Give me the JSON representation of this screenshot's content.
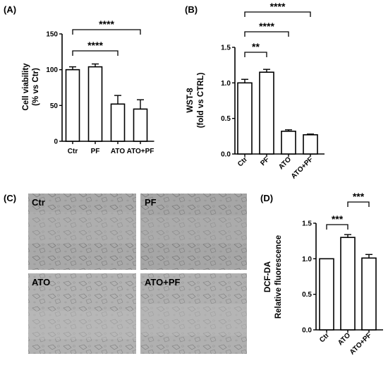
{
  "figure": {
    "panel_letters": [
      "(A)",
      "(B)",
      "(C)",
      "(D)"
    ],
    "micrograph_labels": [
      "Ctr",
      "PF",
      "ATO",
      "ATO+PF"
    ]
  },
  "chart_data": [
    {
      "panel": "(A)",
      "type": "bar",
      "categories": [
        "Ctr",
        "PF",
        "ATO",
        "ATO+PF"
      ],
      "values": [
        100,
        104,
        52,
        45
      ],
      "errors": [
        4,
        4,
        12,
        13
      ],
      "ylabel_lines": [
        "Cell viability",
        "(% vs Ctr)"
      ],
      "ylim": [
        0,
        150
      ],
      "yticks": [
        0,
        50,
        100,
        150
      ],
      "ytick_labels": [
        "0",
        "50",
        "100",
        "150"
      ],
      "significance": [
        {
          "from": "Ctr",
          "to": "ATO",
          "label": "****"
        },
        {
          "from": "Ctr",
          "to": "ATO+PF",
          "label": "****"
        }
      ]
    },
    {
      "panel": "(B)",
      "type": "bar",
      "categories": [
        "Ctr",
        "PF",
        "ATO",
        "ATO+PF"
      ],
      "values": [
        1.0,
        1.15,
        0.32,
        0.27
      ],
      "errors": [
        0.05,
        0.04,
        0.02,
        0.01
      ],
      "ylabel_lines": [
        "WST-8",
        "(fold vs CTRL)"
      ],
      "ylim": [
        0,
        1.5
      ],
      "yticks": [
        0,
        0.5,
        1.0,
        1.5
      ],
      "ytick_labels": [
        "0.0",
        "0.5",
        "1.0",
        "1.5"
      ],
      "significance": [
        {
          "from": "Ctr",
          "to": "PF",
          "label": "**"
        },
        {
          "from": "Ctr",
          "to": "ATO",
          "label": "****"
        },
        {
          "from": "Ctr",
          "to": "ATO+PF",
          "label": "****"
        }
      ]
    },
    {
      "panel": "(D)",
      "type": "bar",
      "categories": [
        "Ctr",
        "ATO",
        "ATO+PF"
      ],
      "values": [
        1.0,
        1.3,
        1.01
      ],
      "errors": [
        0.0,
        0.04,
        0.05
      ],
      "ylabel_lines": [
        "DCF-DA",
        "Relative fluorescence"
      ],
      "ylim": [
        0,
        1.5
      ],
      "yticks": [
        0,
        0.5,
        1.0,
        1.5
      ],
      "ytick_labels": [
        "0.0",
        "0.5",
        "1.0",
        "1.5"
      ],
      "significance": [
        {
          "from": "Ctr",
          "to": "ATO",
          "label": "***"
        },
        {
          "from": "ATO",
          "to": "ATO+PF",
          "label": "***"
        }
      ]
    }
  ]
}
